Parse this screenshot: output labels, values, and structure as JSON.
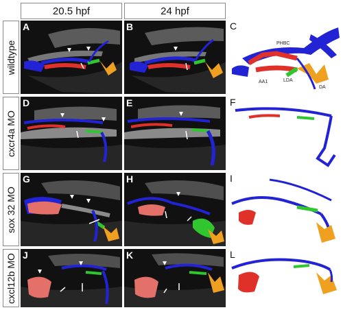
{
  "columns": [
    "20.5 hpf",
    "24 hpf"
  ],
  "rows": [
    "wildtype",
    "cxcr4a MO",
    "sox 32 MO",
    "cxcl12b MO"
  ],
  "panels": {
    "A": "A",
    "B": "B",
    "C": "C",
    "D": "D",
    "E": "E",
    "F": "F",
    "G": "G",
    "H": "H",
    "I": "I",
    "J": "J",
    "K": "K",
    "L": "L"
  },
  "annotations": {
    "PHBC": "PHBC",
    "LDA": "LDA",
    "AA1": "AA1",
    "DA": "DA"
  },
  "colors": {
    "blue": "#2323d6",
    "red": "#e0302a",
    "pink": "#e4706a",
    "green": "#2fc62f",
    "orange": "#f0a020",
    "background": "#111111"
  }
}
